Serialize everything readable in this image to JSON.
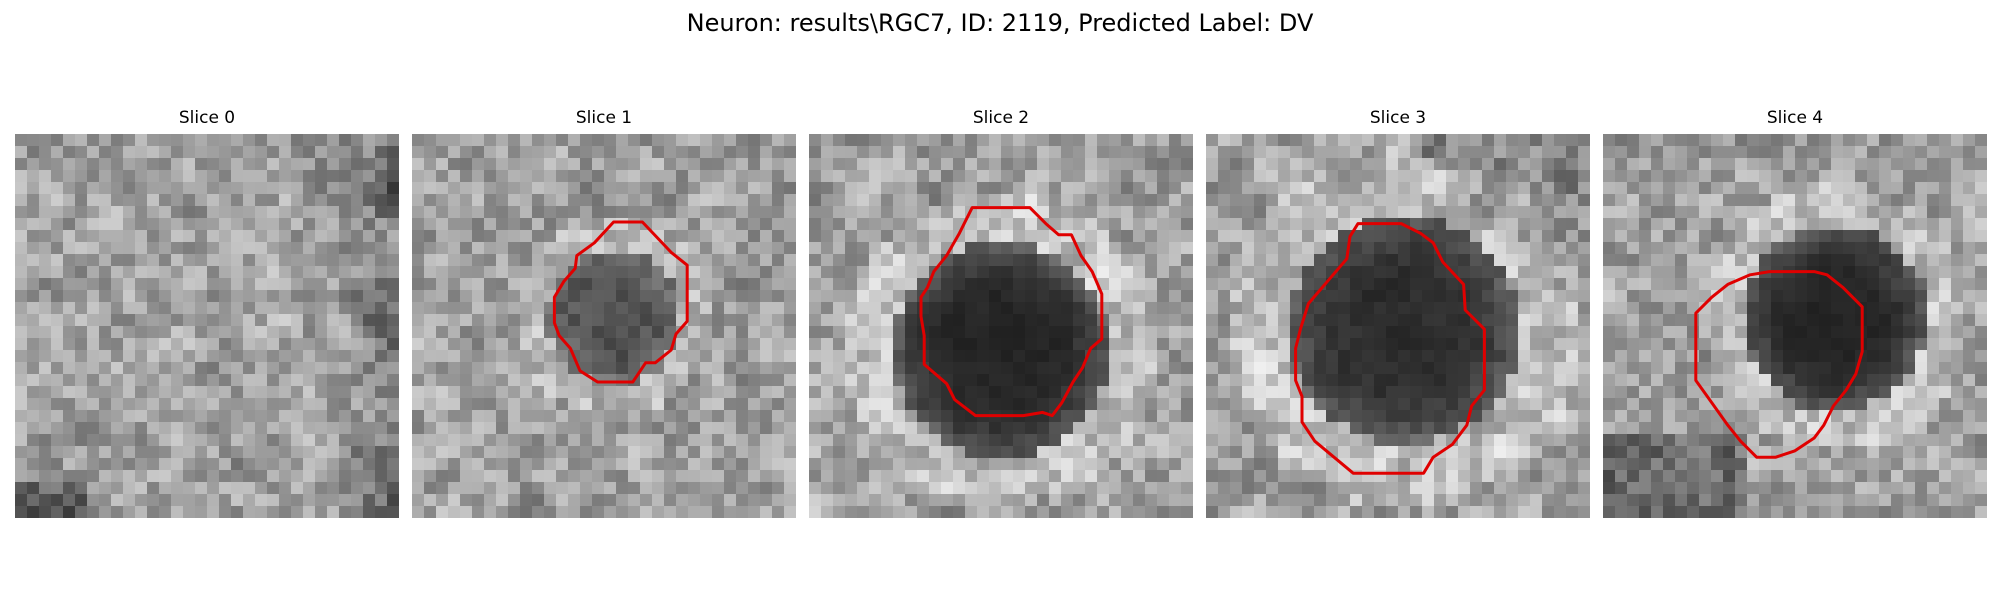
{
  "figure": {
    "title": "Neuron: results\\RGC7, ID: 2119, Predicted Label: DV",
    "contour_color": "#e00000"
  },
  "slices": [
    {
      "label": "Slice 0",
      "has_contour": false,
      "cell_darkness": 0.0,
      "tone": "mottled gray, dark band on right edge"
    },
    {
      "label": "Slice 1",
      "has_contour": true,
      "cell_darkness": 0.55,
      "tone": "small dark cell, light surround"
    },
    {
      "label": "Slice 2",
      "has_contour": true,
      "cell_darkness": 0.85,
      "tone": "large dark cell"
    },
    {
      "label": "Slice 3",
      "has_contour": true,
      "cell_darkness": 0.8,
      "tone": "large dark cell, light ring"
    },
    {
      "label": "Slice 4",
      "has_contour": true,
      "cell_darkness": 0.85,
      "tone": "dark cell offset upper-right"
    }
  ]
}
